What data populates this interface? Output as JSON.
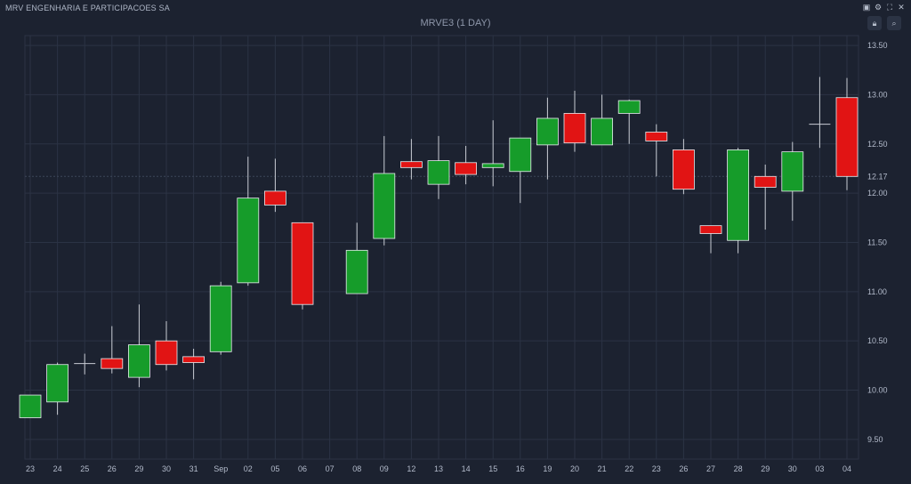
{
  "header": {
    "company": "MRV ENGENHARIA E PARTICIPACOES SA",
    "lock_icon": "lock-icon",
    "search_icon": "search-icon",
    "window_icons": [
      "fit-icon",
      "settings-icon",
      "fullscreen-icon",
      "close-icon"
    ]
  },
  "colors": {
    "background": "#1c2230",
    "grid": "#2b3344",
    "up": "#169c2a",
    "down": "#e11414",
    "wick": "#c8ccd4",
    "text": "#b3bbcb"
  },
  "chart_data": {
    "type": "candlestick",
    "title": "MRVE3 (1 DAY)",
    "ylim": [
      9.3,
      13.6
    ],
    "y_ticks": [
      "13.50",
      "13.00",
      "12.50",
      "12.00",
      "11.50",
      "11.00",
      "10.50",
      "10.00",
      "9.50"
    ],
    "last_price_label": "12.17",
    "categories": [
      "23",
      "24",
      "25",
      "26",
      "29",
      "30",
      "31",
      "Sep",
      "02",
      "05",
      "06",
      "07",
      "08",
      "09",
      "12",
      "13",
      "14",
      "15",
      "16",
      "19",
      "20",
      "21",
      "22",
      "23",
      "26",
      "27",
      "28",
      "29",
      "30",
      "03",
      "04"
    ],
    "candles": [
      {
        "open": 9.72,
        "high": 9.95,
        "low": 9.72,
        "close": 9.95
      },
      {
        "open": 9.88,
        "high": 10.28,
        "low": 9.75,
        "close": 10.26
      },
      {
        "open": 10.27,
        "high": 10.37,
        "low": 10.16,
        "close": 10.27
      },
      {
        "open": 10.32,
        "high": 10.65,
        "low": 10.17,
        "close": 10.22
      },
      {
        "open": 10.13,
        "high": 10.87,
        "low": 10.03,
        "close": 10.46
      },
      {
        "open": 10.5,
        "high": 10.7,
        "low": 10.2,
        "close": 10.26
      },
      {
        "open": 10.34,
        "high": 10.42,
        "low": 10.11,
        "close": 10.28
      },
      {
        "open": 10.39,
        "high": 11.1,
        "low": 10.36,
        "close": 11.06
      },
      {
        "open": 11.09,
        "high": 12.37,
        "low": 11.06,
        "close": 11.95
      },
      {
        "open": 12.02,
        "high": 12.35,
        "low": 11.81,
        "close": 11.88
      },
      {
        "open": 11.7,
        "high": 11.7,
        "low": 10.82,
        "close": 10.87
      },
      null,
      {
        "open": 10.98,
        "high": 11.7,
        "low": 10.98,
        "close": 11.42
      },
      {
        "open": 11.54,
        "high": 12.58,
        "low": 11.47,
        "close": 12.2
      },
      {
        "open": 12.32,
        "high": 12.55,
        "low": 12.14,
        "close": 12.26
      },
      {
        "open": 12.09,
        "high": 12.58,
        "low": 11.94,
        "close": 12.33
      },
      {
        "open": 12.31,
        "high": 12.48,
        "low": 12.09,
        "close": 12.19
      },
      {
        "open": 12.26,
        "high": 12.74,
        "low": 12.07,
        "close": 12.3
      },
      {
        "open": 12.22,
        "high": 12.56,
        "low": 11.9,
        "close": 12.56
      },
      {
        "open": 12.49,
        "high": 12.97,
        "low": 12.14,
        "close": 12.76
      },
      {
        "open": 12.81,
        "high": 13.04,
        "low": 12.42,
        "close": 12.51
      },
      {
        "open": 12.49,
        "high": 13.0,
        "low": 12.49,
        "close": 12.76
      },
      {
        "open": 12.81,
        "high": 12.95,
        "low": 12.5,
        "close": 12.94
      },
      {
        "open": 12.62,
        "high": 12.7,
        "low": 12.17,
        "close": 12.53
      },
      {
        "open": 12.44,
        "high": 12.55,
        "low": 11.99,
        "close": 12.04
      },
      {
        "open": 11.67,
        "high": 11.67,
        "low": 11.39,
        "close": 11.59
      },
      {
        "open": 11.52,
        "high": 12.46,
        "low": 11.39,
        "close": 12.44
      },
      {
        "open": 12.17,
        "high": 12.29,
        "low": 11.63,
        "close": 12.06
      },
      {
        "open": 12.02,
        "high": 12.52,
        "low": 11.72,
        "close": 12.42
      },
      {
        "open": 12.7,
        "high": 13.18,
        "low": 12.46,
        "close": 12.7
      },
      {
        "open": 12.97,
        "high": 13.17,
        "low": 12.03,
        "close": 12.17
      }
    ]
  }
}
